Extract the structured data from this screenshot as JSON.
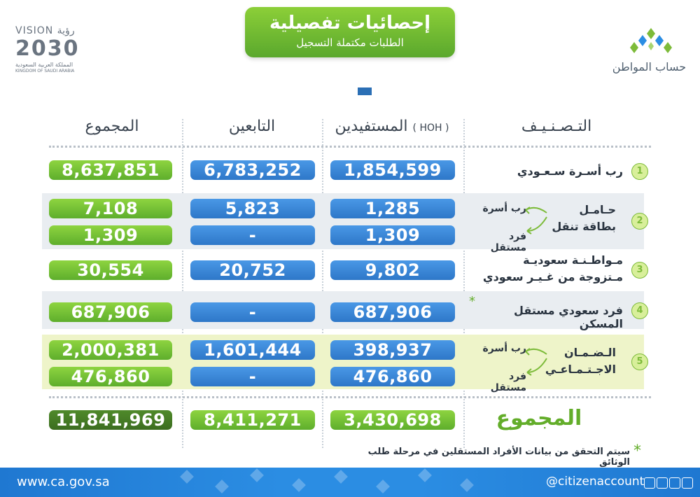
{
  "header": {
    "title": "إحصائيات تفصيلية",
    "subtitle": "الطلبات مكتملة التسجيل"
  },
  "vision_logo": {
    "top": "VISION رؤية",
    "number": "2030",
    "sub_ar": "المملكة العربية السعودية",
    "sub_en": "KINGDOM OF SAUDI ARABIA"
  },
  "citizen_logo": {
    "label": "حساب المواطن"
  },
  "columns": {
    "classification": "التـصـنـيـف",
    "beneficiaries": "المستفيدين",
    "beneficiaries_tag": "( HOH )",
    "dependents": "التابعين",
    "total": "المجموع"
  },
  "rows": [
    {
      "num": "1",
      "label": "رب أسـرة سـعـودي",
      "beneficiaries": "1,854,599",
      "dependents": "6,783,252",
      "total": "8,637,851"
    },
    {
      "num": "2",
      "label_line1": "حـامـل",
      "label_line2": "بطاقة تنقل",
      "sub1": "رب أسرة",
      "sub2": "فرد مستقل",
      "values": [
        {
          "beneficiaries": "1,285",
          "dependents": "5,823",
          "total": "7,108"
        },
        {
          "beneficiaries": "1,309",
          "dependents": "-",
          "total": "1,309"
        }
      ]
    },
    {
      "num": "3",
      "label_line1": "مـواطـنـة سعوديـة",
      "label_line2": "مـتزوجة من غـيـر سعودي",
      "beneficiaries": "9,802",
      "dependents": "20,752",
      "total": "30,554"
    },
    {
      "num": "4",
      "label": "فرد سعودي مستقل المسكن",
      "beneficiaries": "687,906",
      "dependents": "-",
      "total": "687,906"
    },
    {
      "num": "5",
      "label_line1": "الـضـمـان",
      "label_line2": "الاجـتـمـاعـي",
      "sub1": "رب أسرة",
      "sub2": "فرد مستقل",
      "values": [
        {
          "beneficiaries": "398,937",
          "dependents": "1,601,444",
          "total": "2,000,381"
        },
        {
          "beneficiaries": "476,860",
          "dependents": "-",
          "total": "476,860"
        }
      ]
    }
  ],
  "totals": {
    "label": "المجموع",
    "beneficiaries": "3,430,698",
    "dependents": "8,411,271",
    "total": "11,841,969"
  },
  "footnote": "سيتم التحقق من بيانات الأفراد المستقلين في مرحلة طلب الوثائق",
  "star": "*",
  "footer": {
    "url": "www.ca.gov.sa",
    "handle": "@citizenaccount"
  },
  "colors": {
    "green": "#63ad2a",
    "blue": "#2e77c8",
    "dark_green": "#3c6d20",
    "footer_blue": "#2b8de3"
  }
}
